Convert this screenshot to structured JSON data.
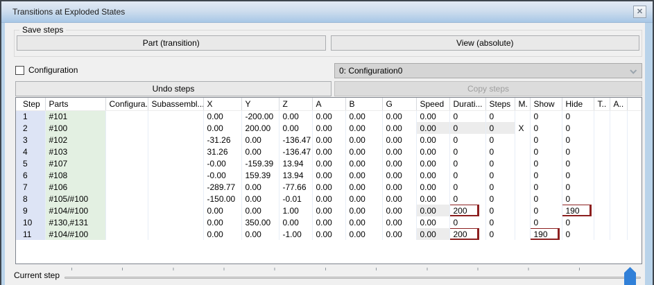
{
  "window": {
    "title": "Transitions at Exploded States"
  },
  "icons": {
    "close": "✕",
    "chevron_down": "chevron-down",
    "checkbox_unchecked": "unchecked"
  },
  "save_steps": {
    "group_label": "Save steps",
    "part_button": "Part (transition)",
    "view_button": "View (absolute)"
  },
  "config_row": {
    "checkbox_label": "Configuration",
    "checkbox_checked": false,
    "combo_value": "0: Configuration0",
    "undo_button": "Undo steps",
    "copy_button": "Copy steps",
    "copy_enabled": false
  },
  "table": {
    "columns": [
      "Step",
      "Parts",
      "Configura...",
      "Subassembl...",
      "X",
      "Y",
      "Z",
      "A",
      "B",
      "G",
      "Speed",
      "Durati...",
      "Steps",
      "M.",
      "Show",
      "Hide",
      "T..",
      "A.."
    ],
    "rows": [
      [
        "1",
        "#101",
        "",
        "",
        "0.00",
        "-200.00",
        "0.00",
        "0.00",
        "0.00",
        "0.00",
        "0.00",
        "0",
        "0",
        "",
        "0",
        "0",
        "",
        ""
      ],
      [
        "2",
        "#100",
        "",
        "",
        "0.00",
        "200.00",
        "0.00",
        "0.00",
        "0.00",
        "0.00",
        "0.00",
        "0",
        "0",
        "X",
        "0",
        "0",
        "",
        ""
      ],
      [
        "3",
        "#102",
        "",
        "",
        "-31.26",
        "0.00",
        "-136.47",
        "0.00",
        "0.00",
        "0.00",
        "0.00",
        "0",
        "0",
        "",
        "0",
        "0",
        "",
        ""
      ],
      [
        "4",
        "#103",
        "",
        "",
        "31.26",
        "0.00",
        "-136.47",
        "0.00",
        "0.00",
        "0.00",
        "0.00",
        "0",
        "0",
        "",
        "0",
        "0",
        "",
        ""
      ],
      [
        "5",
        "#107",
        "",
        "",
        "-0.00",
        "-159.39",
        "13.94",
        "0.00",
        "0.00",
        "0.00",
        "0.00",
        "0",
        "0",
        "",
        "0",
        "0",
        "",
        ""
      ],
      [
        "6",
        "#108",
        "",
        "",
        "-0.00",
        "159.39",
        "13.94",
        "0.00",
        "0.00",
        "0.00",
        "0.00",
        "0",
        "0",
        "",
        "0",
        "0",
        "",
        ""
      ],
      [
        "7",
        "#106",
        "",
        "",
        "-289.77",
        "0.00",
        "-77.66",
        "0.00",
        "0.00",
        "0.00",
        "0.00",
        "0",
        "0",
        "",
        "0",
        "0",
        "",
        ""
      ],
      [
        "8",
        "#105/#100",
        "",
        "",
        "-150.00",
        "0.00",
        "-0.01",
        "0.00",
        "0.00",
        "0.00",
        "0.00",
        "0",
        "0",
        "",
        "0",
        "0",
        "",
        ""
      ],
      [
        "9",
        "#104/#100",
        "",
        "",
        "0.00",
        "0.00",
        "1.00",
        "0.00",
        "0.00",
        "0.00",
        "0.00",
        "200",
        "0",
        "",
        "0",
        "190",
        "",
        ""
      ],
      [
        "10",
        "#130,#131",
        "",
        "",
        "0.00",
        "350.00",
        "0.00",
        "0.00",
        "0.00",
        "0.00",
        "0.00",
        "0",
        "0",
        "",
        "0",
        "0",
        "",
        ""
      ],
      [
        "11",
        "#104/#100",
        "",
        "",
        "0.00",
        "0.00",
        "-1.00",
        "0.00",
        "0.00",
        "0.00",
        "0.00",
        "200",
        "0",
        "",
        "190",
        "0",
        "",
        ""
      ]
    ],
    "gray_cells": [
      [
        1,
        10
      ],
      [
        1,
        11
      ],
      [
        1,
        12
      ],
      [
        8,
        10
      ],
      [
        10,
        10
      ]
    ],
    "highlight_boxes": [
      [
        8,
        11
      ],
      [
        8,
        15
      ],
      [
        10,
        11
      ],
      [
        10,
        14
      ]
    ],
    "highlight_color": "#8c1f1f",
    "step_column_color": "#dde4f5",
    "parts_column_color": "#e3f0e2"
  },
  "footer": {
    "current_step_label": "Current step",
    "slider": {
      "tick_count": 12,
      "value": 11,
      "thumb_color": "#3180d8"
    }
  }
}
